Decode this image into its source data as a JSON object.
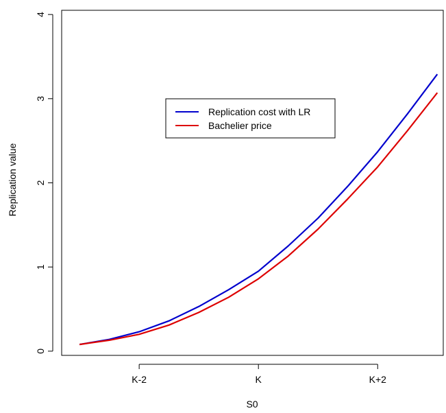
{
  "chart_data": {
    "type": "line",
    "xlabel": "S0",
    "ylabel": "Replication value",
    "x_ticks": [
      {
        "value": -2,
        "label": "K-2"
      },
      {
        "value": 0,
        "label": "K"
      },
      {
        "value": 2,
        "label": "K+2"
      }
    ],
    "y_ticks": [
      0,
      1,
      2,
      3,
      4
    ],
    "xlim": [
      -3.3,
      3.1
    ],
    "ylim": [
      -0.05,
      4.05
    ],
    "grid": false,
    "legend": {
      "position": "top-center"
    },
    "series": [
      {
        "name": "Replication cost with LR",
        "color": "#0000CD",
        "x": [
          -3.0,
          -2.5,
          -2.0,
          -1.5,
          -1.0,
          -0.5,
          0.0,
          0.5,
          1.0,
          1.5,
          2.0,
          2.5,
          3.0
        ],
        "y": [
          0.08,
          0.14,
          0.23,
          0.36,
          0.53,
          0.73,
          0.95,
          1.25,
          1.58,
          1.96,
          2.37,
          2.82,
          3.29
        ]
      },
      {
        "name": "Bachelier price",
        "color": "#DD0000",
        "x": [
          -3.0,
          -2.5,
          -2.0,
          -1.5,
          -1.0,
          -0.5,
          0.0,
          0.5,
          1.0,
          1.5,
          2.0,
          2.5,
          3.0
        ],
        "y": [
          0.08,
          0.13,
          0.2,
          0.31,
          0.46,
          0.64,
          0.86,
          1.13,
          1.45,
          1.81,
          2.19,
          2.62,
          3.07
        ]
      }
    ]
  }
}
